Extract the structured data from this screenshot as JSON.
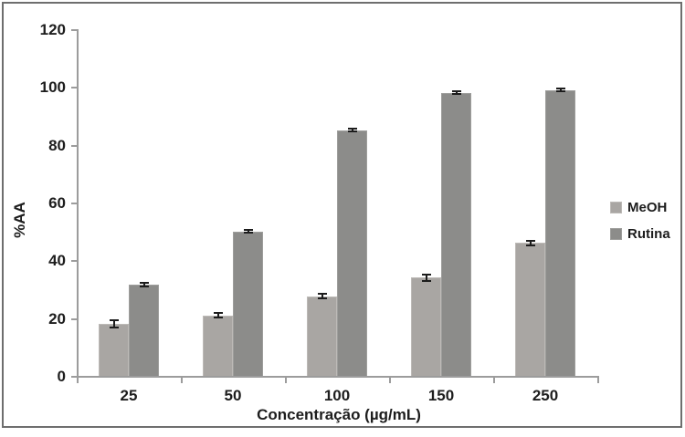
{
  "chart_data": {
    "type": "bar",
    "title": "",
    "xlabel": "Concentração (µg/mL)",
    "ylabel": "%AA",
    "categories": [
      "25",
      "50",
      "100",
      "150",
      "250"
    ],
    "series": [
      {
        "name": "MeOH",
        "color": "#a9a6a3",
        "border": "#bdbab7",
        "values": [
          18,
          21,
          27.5,
          34,
          46
        ],
        "errors": [
          1.2,
          0.8,
          0.8,
          1.0,
          0.8
        ]
      },
      {
        "name": "Rutina",
        "color": "#8c8c8a",
        "border": "#9e9e9c",
        "values": [
          31.5,
          50,
          85,
          98,
          99
        ],
        "errors": [
          0.6,
          0.5,
          0.5,
          0.4,
          0.5
        ]
      }
    ],
    "ylim": [
      0,
      120
    ],
    "yticks": [
      0,
      20,
      40,
      60,
      80,
      100,
      120
    ],
    "grid": false,
    "legend_position": "right",
    "error_bars": true,
    "axis_color": "#9c9c9c",
    "frame_color": "#6e6e6e"
  }
}
